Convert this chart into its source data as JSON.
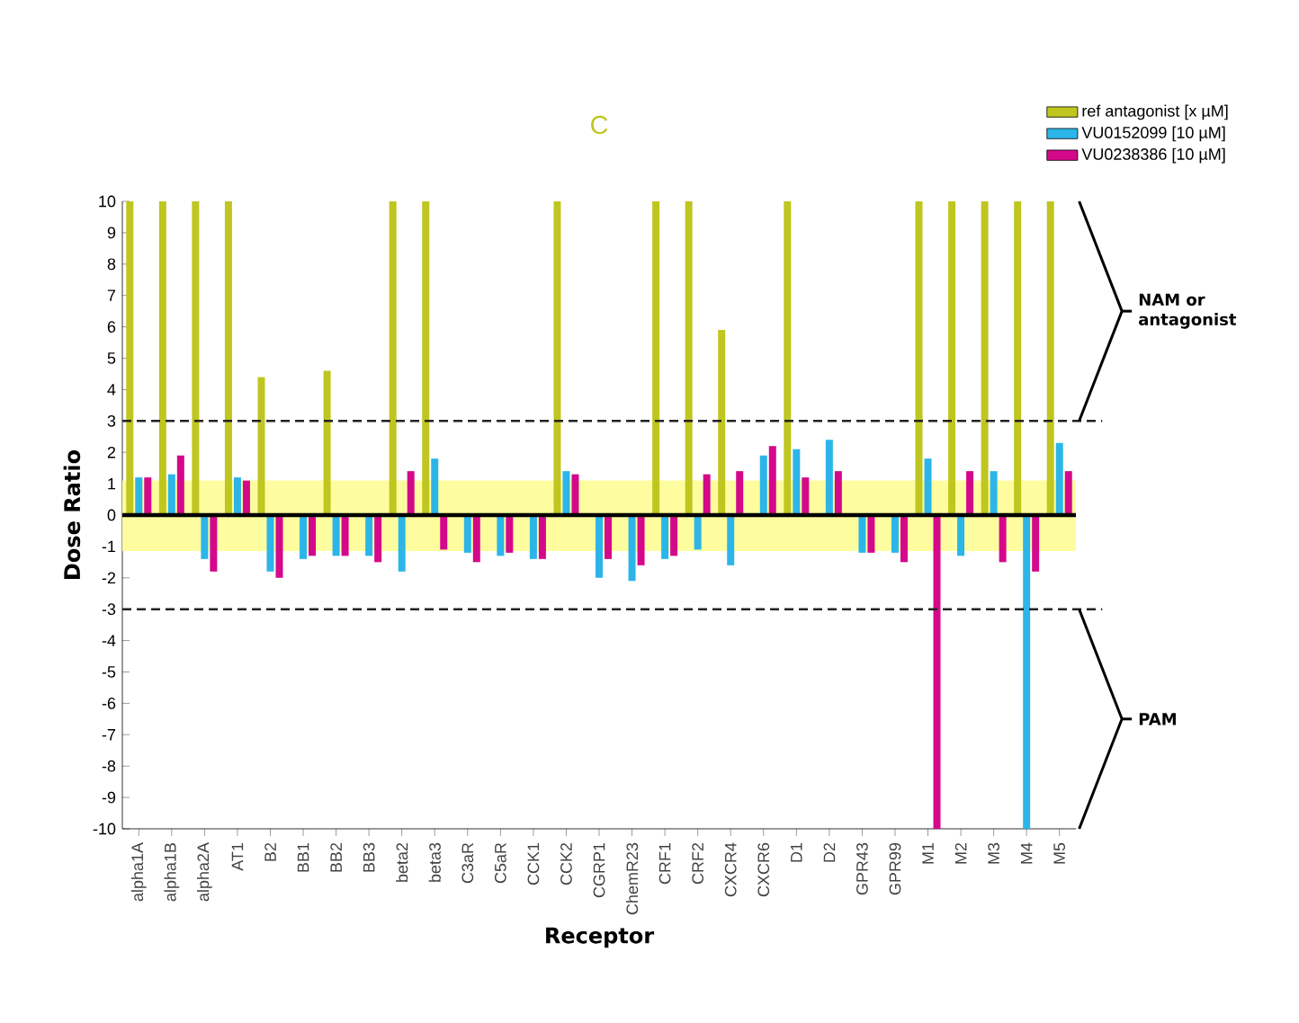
{
  "chart_data": {
    "type": "bar",
    "title": "C",
    "xlabel": "Receptor",
    "ylabel": "Dose Ratio",
    "categories": [
      "alpha1A",
      "alpha1B",
      "alpha2A",
      "AT1",
      "B2",
      "BB1",
      "BB2",
      "BB3",
      "beta2",
      "beta3",
      "C3aR",
      "C5aR",
      "CCK1",
      "CCK2",
      "CGRP1",
      "ChemR23",
      "CRF1",
      "CRF2",
      "CXCR4",
      "CXCR6",
      "D1",
      "D2",
      "GPR43",
      "GPR99",
      "M1",
      "M2",
      "M3",
      "M4",
      "M5"
    ],
    "series": [
      {
        "name": "ref antagonist [x µM]",
        "color": "#bfc61f",
        "values": [
          10,
          10,
          10,
          10,
          4.4,
          null,
          4.6,
          null,
          10,
          10,
          null,
          null,
          null,
          10,
          null,
          null,
          10,
          10,
          5.9,
          null,
          10,
          null,
          null,
          null,
          10,
          10,
          10,
          10,
          10
        ]
      },
      {
        "name": "VU0152099 [10 µM]",
        "color": "#2cb5e8",
        "values": [
          1.2,
          1.3,
          -1.4,
          1.2,
          -1.8,
          -1.4,
          -1.3,
          -1.3,
          -1.8,
          1.8,
          -1.2,
          -1.3,
          -1.4,
          1.4,
          -2.0,
          -2.1,
          -1.4,
          -1.1,
          -1.6,
          1.9,
          2.1,
          2.4,
          -1.2,
          -1.2,
          1.8,
          -1.3,
          1.4,
          -10,
          2.3
        ]
      },
      {
        "name": "VU0238386 [10 µM]",
        "color": "#d4088a",
        "values": [
          1.2,
          1.9,
          -1.8,
          1.1,
          -2.0,
          -1.3,
          -1.3,
          -1.5,
          1.4,
          -1.1,
          -1.5,
          -1.2,
          -1.4,
          1.3,
          -1.4,
          -1.6,
          -1.3,
          1.3,
          1.4,
          2.2,
          1.2,
          1.4,
          -1.2,
          -1.5,
          -10,
          1.4,
          -1.5,
          -1.8,
          1.4
        ]
      }
    ],
    "ylim": [
      -10,
      10
    ],
    "yticks": [
      -10,
      -9,
      -8,
      -7,
      -6,
      -5,
      -4,
      -3,
      -2,
      -1,
      0,
      1,
      2,
      3,
      4,
      5,
      6,
      7,
      8,
      9,
      10
    ],
    "ref_lines": [
      {
        "axis": "y",
        "value": 3,
        "line_style": "dashed",
        "color": "#222222"
      },
      {
        "axis": "y",
        "value": -3,
        "line_style": "dashed",
        "color": "#222222"
      },
      {
        "axis": "y",
        "value": 0,
        "line_style": "solid",
        "color": "#000000"
      }
    ],
    "bands": [
      {
        "axis": "y",
        "from": -1.15,
        "to": 1.1,
        "color": "#fdfd9f"
      }
    ],
    "annotations": [
      "NAM or antagonist",
      "PAM"
    ],
    "legend": "top right",
    "grid": false
  }
}
